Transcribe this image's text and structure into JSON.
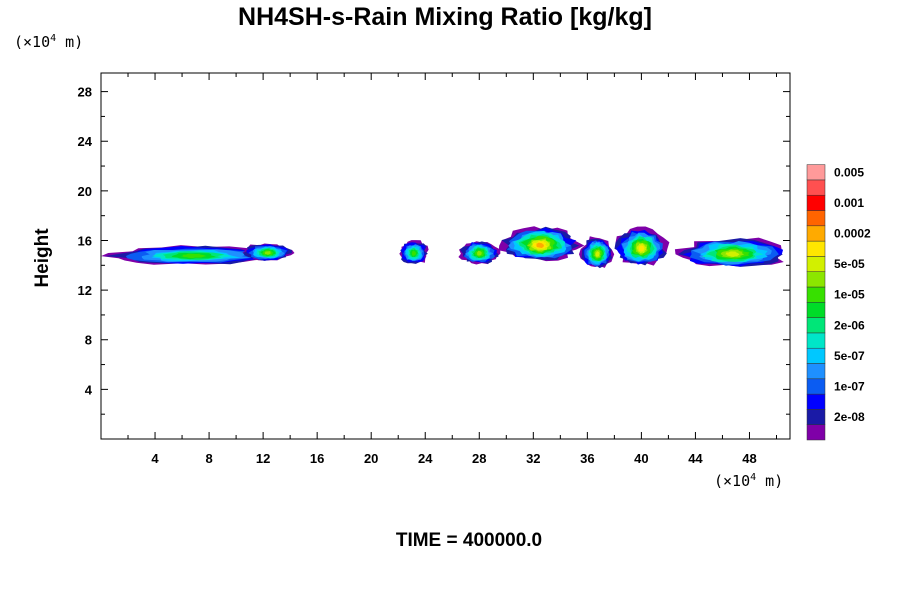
{
  "chart_data": {
    "type": "heatmap",
    "title": "NH4SH-s-Rain Mixing Ratio [kg/kg]",
    "ylabel": "Height",
    "xunit_text": "(×10",
    "xunit_exp": "4",
    "xunit_tail": " m)",
    "yunit_text": "(×10",
    "yunit_exp": "4",
    "yunit_tail": " m)",
    "footer": "TIME = 400000.0",
    "xlim": [
      0,
      51
    ],
    "ylim": [
      0,
      29.5
    ],
    "xticks": [
      4,
      8,
      12,
      16,
      20,
      24,
      28,
      32,
      36,
      40,
      44,
      48
    ],
    "yticks": [
      4,
      8,
      12,
      16,
      20,
      24,
      28
    ],
    "colorbar": {
      "colors": [
        "#7f00a8",
        "#1a1aa6",
        "#0000ff",
        "#0b5cf2",
        "#1e90ff",
        "#00c8ff",
        "#00e6c8",
        "#00e678",
        "#00dc28",
        "#37e000",
        "#8ce600",
        "#d2f000",
        "#ffe600",
        "#ffaa00",
        "#ff6400",
        "#ff0000",
        "#ff5050",
        "#ff9a9a"
      ],
      "labels": [
        {
          "text": "2e-08",
          "index": 1
        },
        {
          "text": "1e-07",
          "index": 3
        },
        {
          "text": "5e-07",
          "index": 5
        },
        {
          "text": "2e-06",
          "index": 7
        },
        {
          "text": "1e-05",
          "index": 9
        },
        {
          "text": "5e-05",
          "index": 11
        },
        {
          "text": "0.0002",
          "index": 13
        },
        {
          "text": "0.001",
          "index": 15
        },
        {
          "text": "0.005",
          "index": 17
        }
      ]
    },
    "cloud_regions": [
      {
        "x0": 0.2,
        "x1": 13.5,
        "ybot": 14.0,
        "ytop": 15.8,
        "peak": 9
      },
      {
        "x0": 10.5,
        "x1": 14.2,
        "ybot": 14.3,
        "ytop": 16.0,
        "peak": 10
      },
      {
        "x0": 22.0,
        "x1": 24.3,
        "ybot": 14.0,
        "ytop": 16.2,
        "peak": 9
      },
      {
        "x0": 26.5,
        "x1": 29.5,
        "ybot": 14.0,
        "ytop": 16.2,
        "peak": 10
      },
      {
        "x0": 29.5,
        "x1": 35.5,
        "ybot": 14.2,
        "ytop": 17.3,
        "peak": 13
      },
      {
        "x0": 35.5,
        "x1": 38.0,
        "ybot": 13.6,
        "ytop": 16.5,
        "peak": 11
      },
      {
        "x0": 38.0,
        "x1": 42.0,
        "ybot": 13.8,
        "ytop": 17.2,
        "peak": 12
      },
      {
        "x0": 42.5,
        "x1": 51.0,
        "ybot": 13.7,
        "ytop": 16.4,
        "peak": 11
      }
    ]
  }
}
